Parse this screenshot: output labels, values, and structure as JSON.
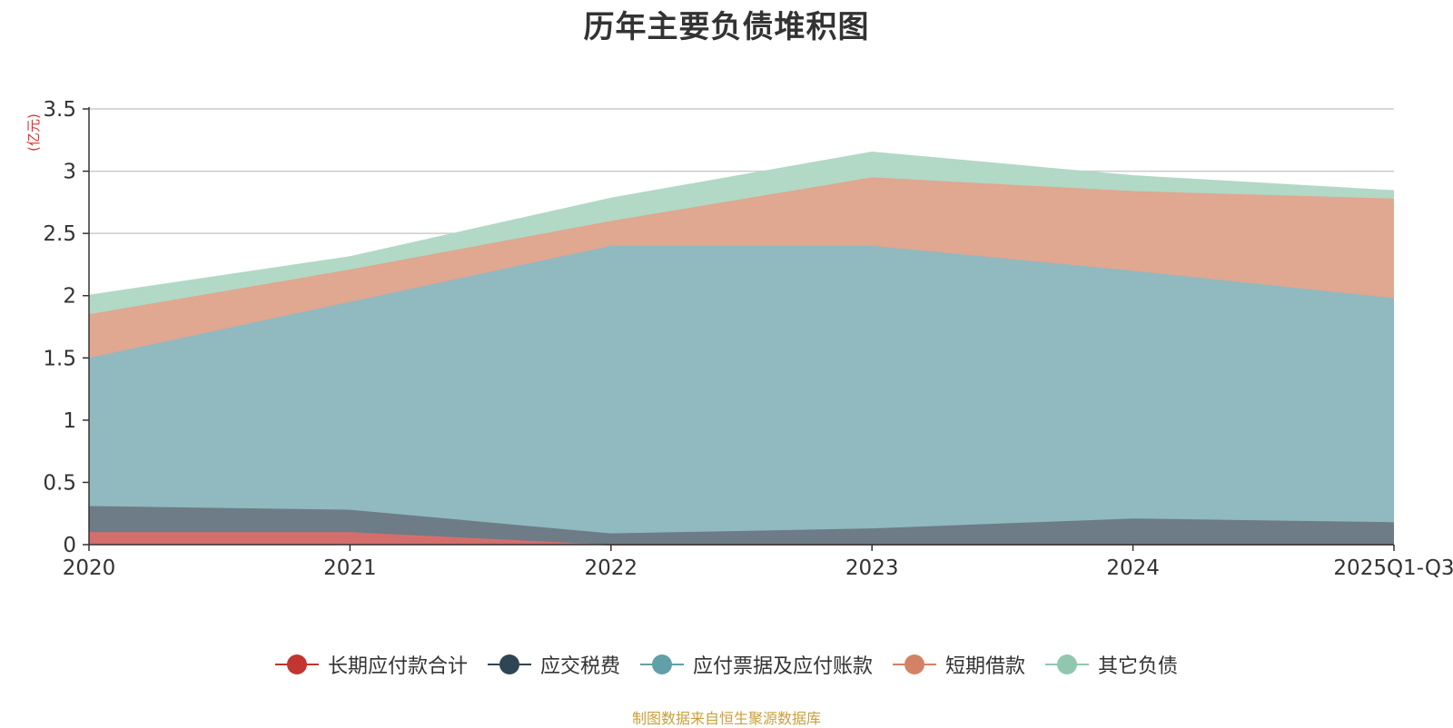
{
  "chart_data": {
    "type": "area",
    "stacked": true,
    "title": "历年主要负债堆积图",
    "ylabel": "(亿元)",
    "xlabel": "",
    "ylim": [
      0,
      3.5
    ],
    "yticks": [
      0,
      0.5,
      1,
      1.5,
      2,
      2.5,
      3,
      3.5
    ],
    "ytick_labels": [
      "0",
      "0.5",
      "1",
      "1.5",
      "2",
      "2.5",
      "3",
      "3.5"
    ],
    "categories": [
      "2020",
      "2021",
      "2022",
      "2023",
      "2024",
      "2025Q1-Q3"
    ],
    "grid": true,
    "legend_position": "bottom",
    "series": [
      {
        "name": "长期应付款合计",
        "color": "#c23531",
        "area_color": "#d46e6c",
        "values": [
          0.1,
          0.1,
          0.0,
          0.0,
          0.0,
          0.0
        ]
      },
      {
        "name": "应交税费",
        "color": "#2f4554",
        "area_color": "#6d7c87",
        "values": [
          0.21,
          0.18,
          0.09,
          0.13,
          0.21,
          0.18
        ]
      },
      {
        "name": "应付票据及应付账款",
        "color": "#61a0a8",
        "area_color": "#90b9c0",
        "values": [
          1.19,
          1.67,
          2.31,
          2.27,
          1.99,
          1.8
        ]
      },
      {
        "name": "短期借款",
        "color": "#d48265",
        "area_color": "#e0a791",
        "values": [
          0.35,
          0.26,
          0.2,
          0.55,
          0.64,
          0.8
        ]
      },
      {
        "name": "其它负债",
        "color": "#91c7ae",
        "area_color": "#b2d8c6",
        "values": [
          0.15,
          0.1,
          0.18,
          0.2,
          0.12,
          0.06
        ]
      }
    ]
  },
  "footer": {
    "source": "制图数据来自恒生聚源数据库"
  }
}
